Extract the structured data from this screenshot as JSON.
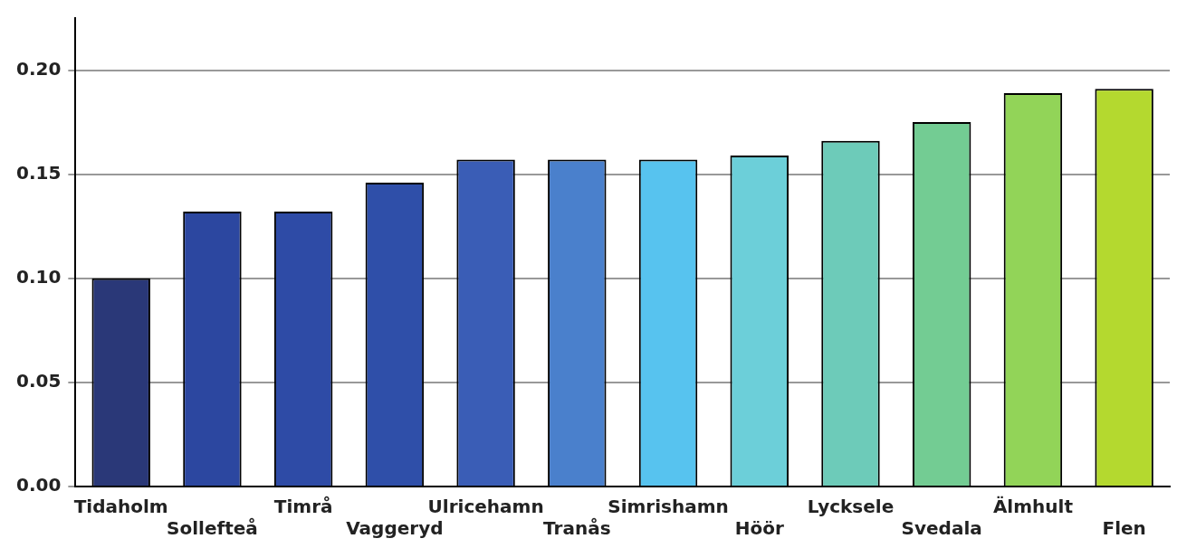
{
  "chart_data": {
    "type": "bar",
    "categories": [
      "Tidaholm",
      "Sollefteå",
      "Timrå",
      "Vaggeryd",
      "Ulricehamn",
      "Tranås",
      "Simrishamn",
      "Höör",
      "Lycksele",
      "Svedala",
      "Älmhult",
      "Flen"
    ],
    "values": [
      0.1,
      0.132,
      0.132,
      0.146,
      0.157,
      0.157,
      0.157,
      0.159,
      0.166,
      0.175,
      0.189,
      0.191
    ],
    "colors": [
      "#2a3878",
      "#2c47a0",
      "#2e4ba6",
      "#2f4fa9",
      "#3a5db6",
      "#4a80cc",
      "#57c3ef",
      "#6ccfd9",
      "#6dcbb9",
      "#73cc93",
      "#92d458",
      "#b4d92f"
    ],
    "ylim": [
      0,
      0.225
    ],
    "yticks": [
      {
        "value": 0,
        "label": "0.00"
      },
      {
        "value": 0.05,
        "label": "0.05"
      },
      {
        "value": 0.1,
        "label": "0.10"
      },
      {
        "value": 0.15,
        "label": "0.15"
      },
      {
        "value": 0.2,
        "label": "0.20"
      }
    ],
    "grid": true
  }
}
